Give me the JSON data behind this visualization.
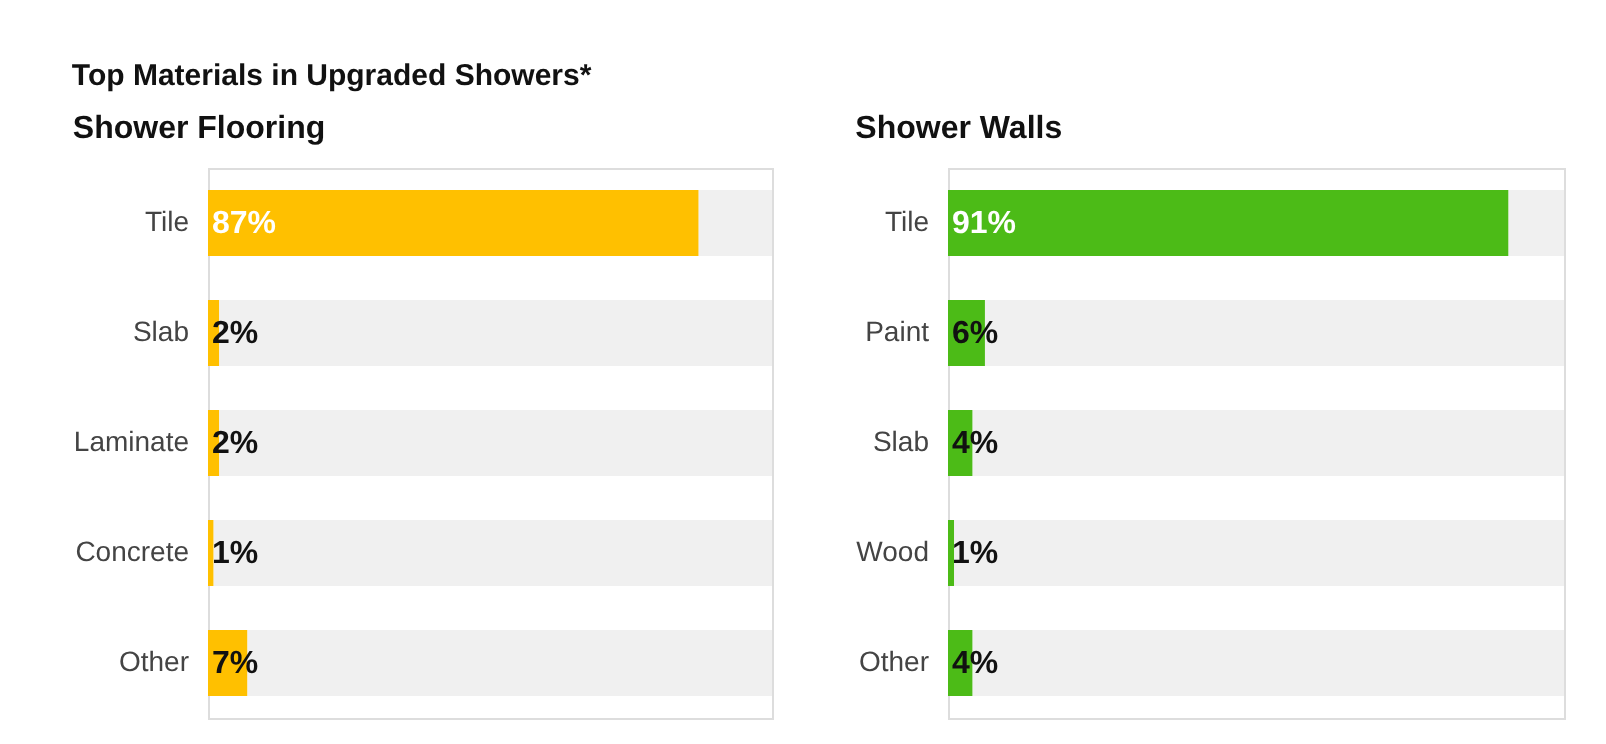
{
  "chart_data": [
    {
      "type": "bar",
      "orientation": "horizontal",
      "stacked": true,
      "title": "Top Materials in Upgraded Showers*",
      "subtitle": "Shower Flooring",
      "categories": [
        "Tile",
        "Slab",
        "Laminate",
        "Concrete",
        "Other"
      ],
      "grid": false,
      "legend": false,
      "tick_labels": "y",
      "series": [
        {
          "color": "#ffc000",
          "values": [
            87,
            2,
            2,
            1,
            7
          ],
          "value_labels": [
            "87%",
            "2%",
            "2%",
            "1%",
            "7%"
          ]
        },
        {
          "color": "#f0f0f0",
          "values": [
            13,
            98,
            98,
            99,
            93
          ]
        }
      ]
    },
    {
      "type": "bar",
      "orientation": "horizontal",
      "stacked": true,
      "subtitle": "Shower Walls",
      "categories": [
        "Tile",
        "Paint",
        "Slab",
        "Wood",
        "Other"
      ],
      "grid": false,
      "legend": false,
      "tick_labels": "y",
      "series": [
        {
          "color": "#4cbb17",
          "values": [
            91,
            6,
            4,
            1,
            4
          ],
          "value_labels": [
            "91%",
            "6%",
            "4%",
            "1%",
            "4%"
          ]
        },
        {
          "color": "#f0f0f0",
          "values": [
            9,
            94,
            96,
            99,
            96
          ]
        }
      ]
    }
  ]
}
